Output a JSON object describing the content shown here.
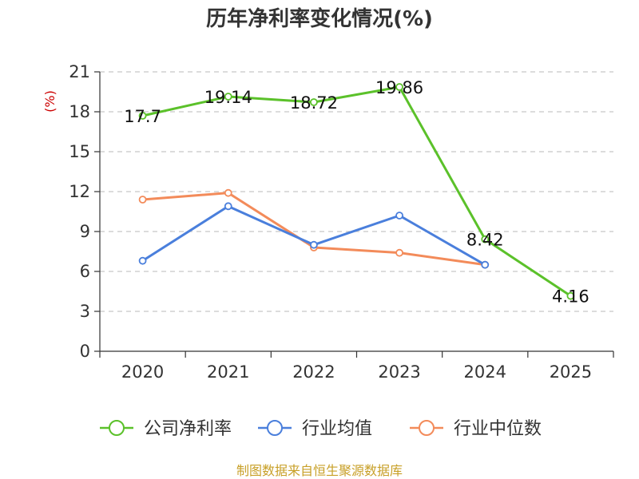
{
  "chart_data": {
    "type": "line",
    "title": "历年净利率变化情况(%)",
    "ylabel": "(%)",
    "xlabel": "",
    "categories": [
      "2020",
      "2021",
      "2022",
      "2023",
      "2024",
      "2025"
    ],
    "ylim": [
      0,
      21
    ],
    "yticks": [
      0,
      3,
      6,
      9,
      12,
      15,
      18,
      21
    ],
    "grid": true,
    "legend_position": "bottom",
    "series": [
      {
        "name": "公司净利率",
        "color": "#5bc12a",
        "values": [
          17.7,
          19.14,
          18.72,
          19.86,
          8.42,
          4.16
        ],
        "labels": [
          "17.7",
          "19.14",
          "18.72",
          "19.86",
          "8.42",
          "4.16"
        ]
      },
      {
        "name": "行业均值",
        "color": "#4a7fdc",
        "values": [
          6.8,
          10.9,
          8.0,
          10.2,
          6.5,
          null
        ]
      },
      {
        "name": "行业中位数",
        "color": "#f38b5a",
        "values": [
          11.4,
          11.9,
          7.8,
          7.4,
          6.5,
          null
        ]
      }
    ]
  },
  "footer": {
    "source": "制图数据来自恒生聚源数据库"
  }
}
